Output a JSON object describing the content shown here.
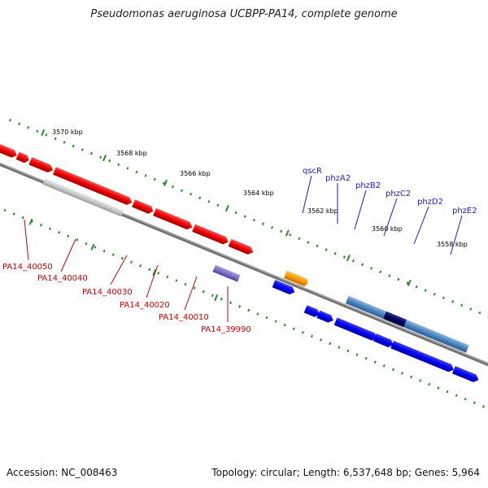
{
  "title": "Pseudomonas aeruginosa UCBPP-PA14, complete genome",
  "footer": {
    "accession_label": "Accession:",
    "accession": "NC_008463",
    "topology_label": "Topology:",
    "topology": "circular",
    "length_label": "Length:",
    "length": "6,537,648 bp",
    "genes_label": "Genes:",
    "genes": "5,964"
  },
  "colors": {
    "forward_gene": "#ff0000",
    "reverse_gene": "#0000ff",
    "highlight_gene": "#ff9900",
    "phz_gene": "#4a86c0",
    "phz_dark": "#000060",
    "pseudo_gene": "#c8c8c8",
    "rna_gene": "#7b70c8",
    "tick": "#2a8a2a",
    "backbone": "#808080"
  },
  "scale": {
    "ticks": [
      {
        "label": "3570 kbp"
      },
      {
        "label": "3568 kbp"
      },
      {
        "label": "3566 kbp"
      },
      {
        "label": "3564 kbp"
      },
      {
        "label": "3562 kbp"
      },
      {
        "label": "3560 kbp"
      },
      {
        "label": "3558 kbp"
      }
    ]
  },
  "gene_labels": {
    "red": [
      "PA14_40050",
      "PA14_40040",
      "PA14_40030",
      "PA14_40020",
      "PA14_40010",
      "PA14_39990"
    ],
    "blue": [
      "qscR",
      "phzA2",
      "phzB2",
      "phzC2",
      "phzD2",
      "phzE2"
    ]
  }
}
